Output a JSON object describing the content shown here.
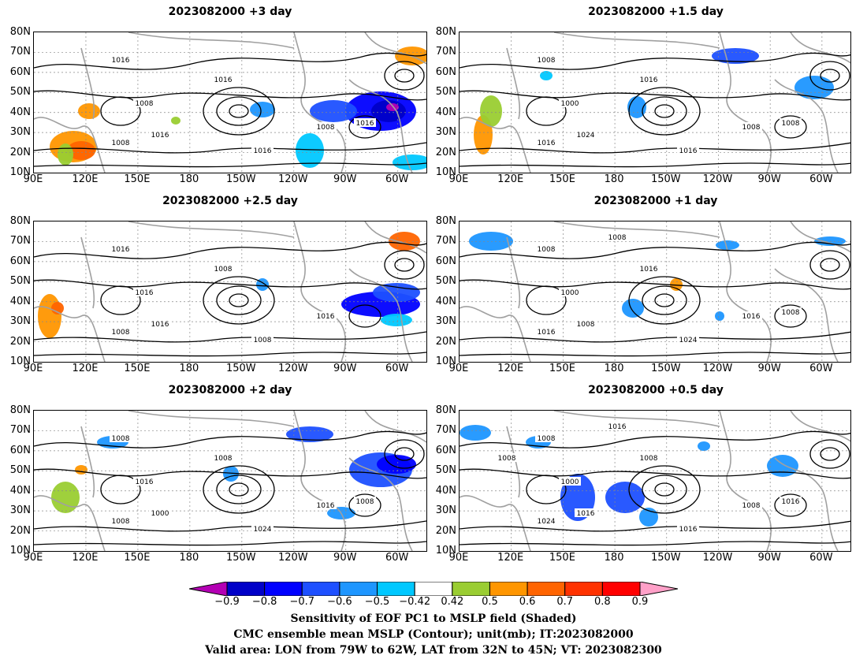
{
  "panels": [
    {
      "title": "2023082000  +3 day"
    },
    {
      "title": "2023082000  +1.5 day"
    },
    {
      "title": "2023082000  +2.5 day"
    },
    {
      "title": "2023082000  +1 day"
    },
    {
      "title": "2023082000  +2 day"
    },
    {
      "title": "2023082000  +0.5 day"
    }
  ],
  "axes": {
    "lat_labels": [
      "80N",
      "70N",
      "60N",
      "50N",
      "40N",
      "30N",
      "20N",
      "10N"
    ],
    "lon_labels": [
      "90E",
      "120E",
      "150E",
      "180",
      "150W",
      "120W",
      "90W",
      "60W"
    ]
  },
  "contour_labels": {
    "p0": [
      "1016",
      "1016",
      "1008",
      "1016",
      "1008",
      "1016",
      "1008",
      "1016"
    ],
    "p1": [
      "1008",
      "1016",
      "1000",
      "1024",
      "1008",
      "1016",
      "1016",
      "1008"
    ],
    "p2": [
      "1016",
      "1008",
      "1016",
      "1016",
      "1016",
      "1008",
      "1008"
    ],
    "p3": [
      "1008",
      "1016",
      "1000",
      "1008",
      "1016",
      "1024",
      "1016",
      "1008",
      "1008"
    ],
    "p4": [
      "1008",
      "1008",
      "1016",
      "1000",
      "1016",
      "1024",
      "1008",
      "1008"
    ],
    "p5": [
      "1008",
      "1008",
      "1000",
      "1016",
      "1008",
      "1016",
      "1024",
      "1016",
      "1016",
      "1008"
    ]
  },
  "colorbar": {
    "ticks": [
      "−0.9",
      "−0.8",
      "−0.7",
      "−0.6",
      "−0.5",
      "−0.42",
      "0.42",
      "0.5",
      "0.6",
      "0.7",
      "0.8",
      "0.9"
    ],
    "colors": [
      "#b400b4",
      "#0000c8",
      "#0000ff",
      "#1e50ff",
      "#1e96ff",
      "#00c8ff",
      "#ffffff",
      "#9acd32",
      "#ff9600",
      "#ff6400",
      "#ff3200",
      "#ff0000",
      "#ffa0c8"
    ]
  },
  "footer": {
    "line1": "Sensitivity of EOF PC1 to MSLP field (Shaded)",
    "line2": "CMC ensemble mean MSLP (Contour); unit(mb); IT:2023082000",
    "line3": "Valid area: LON from 79W to 62W, LAT from 32N to 45N; VT: 2023082300"
  }
}
